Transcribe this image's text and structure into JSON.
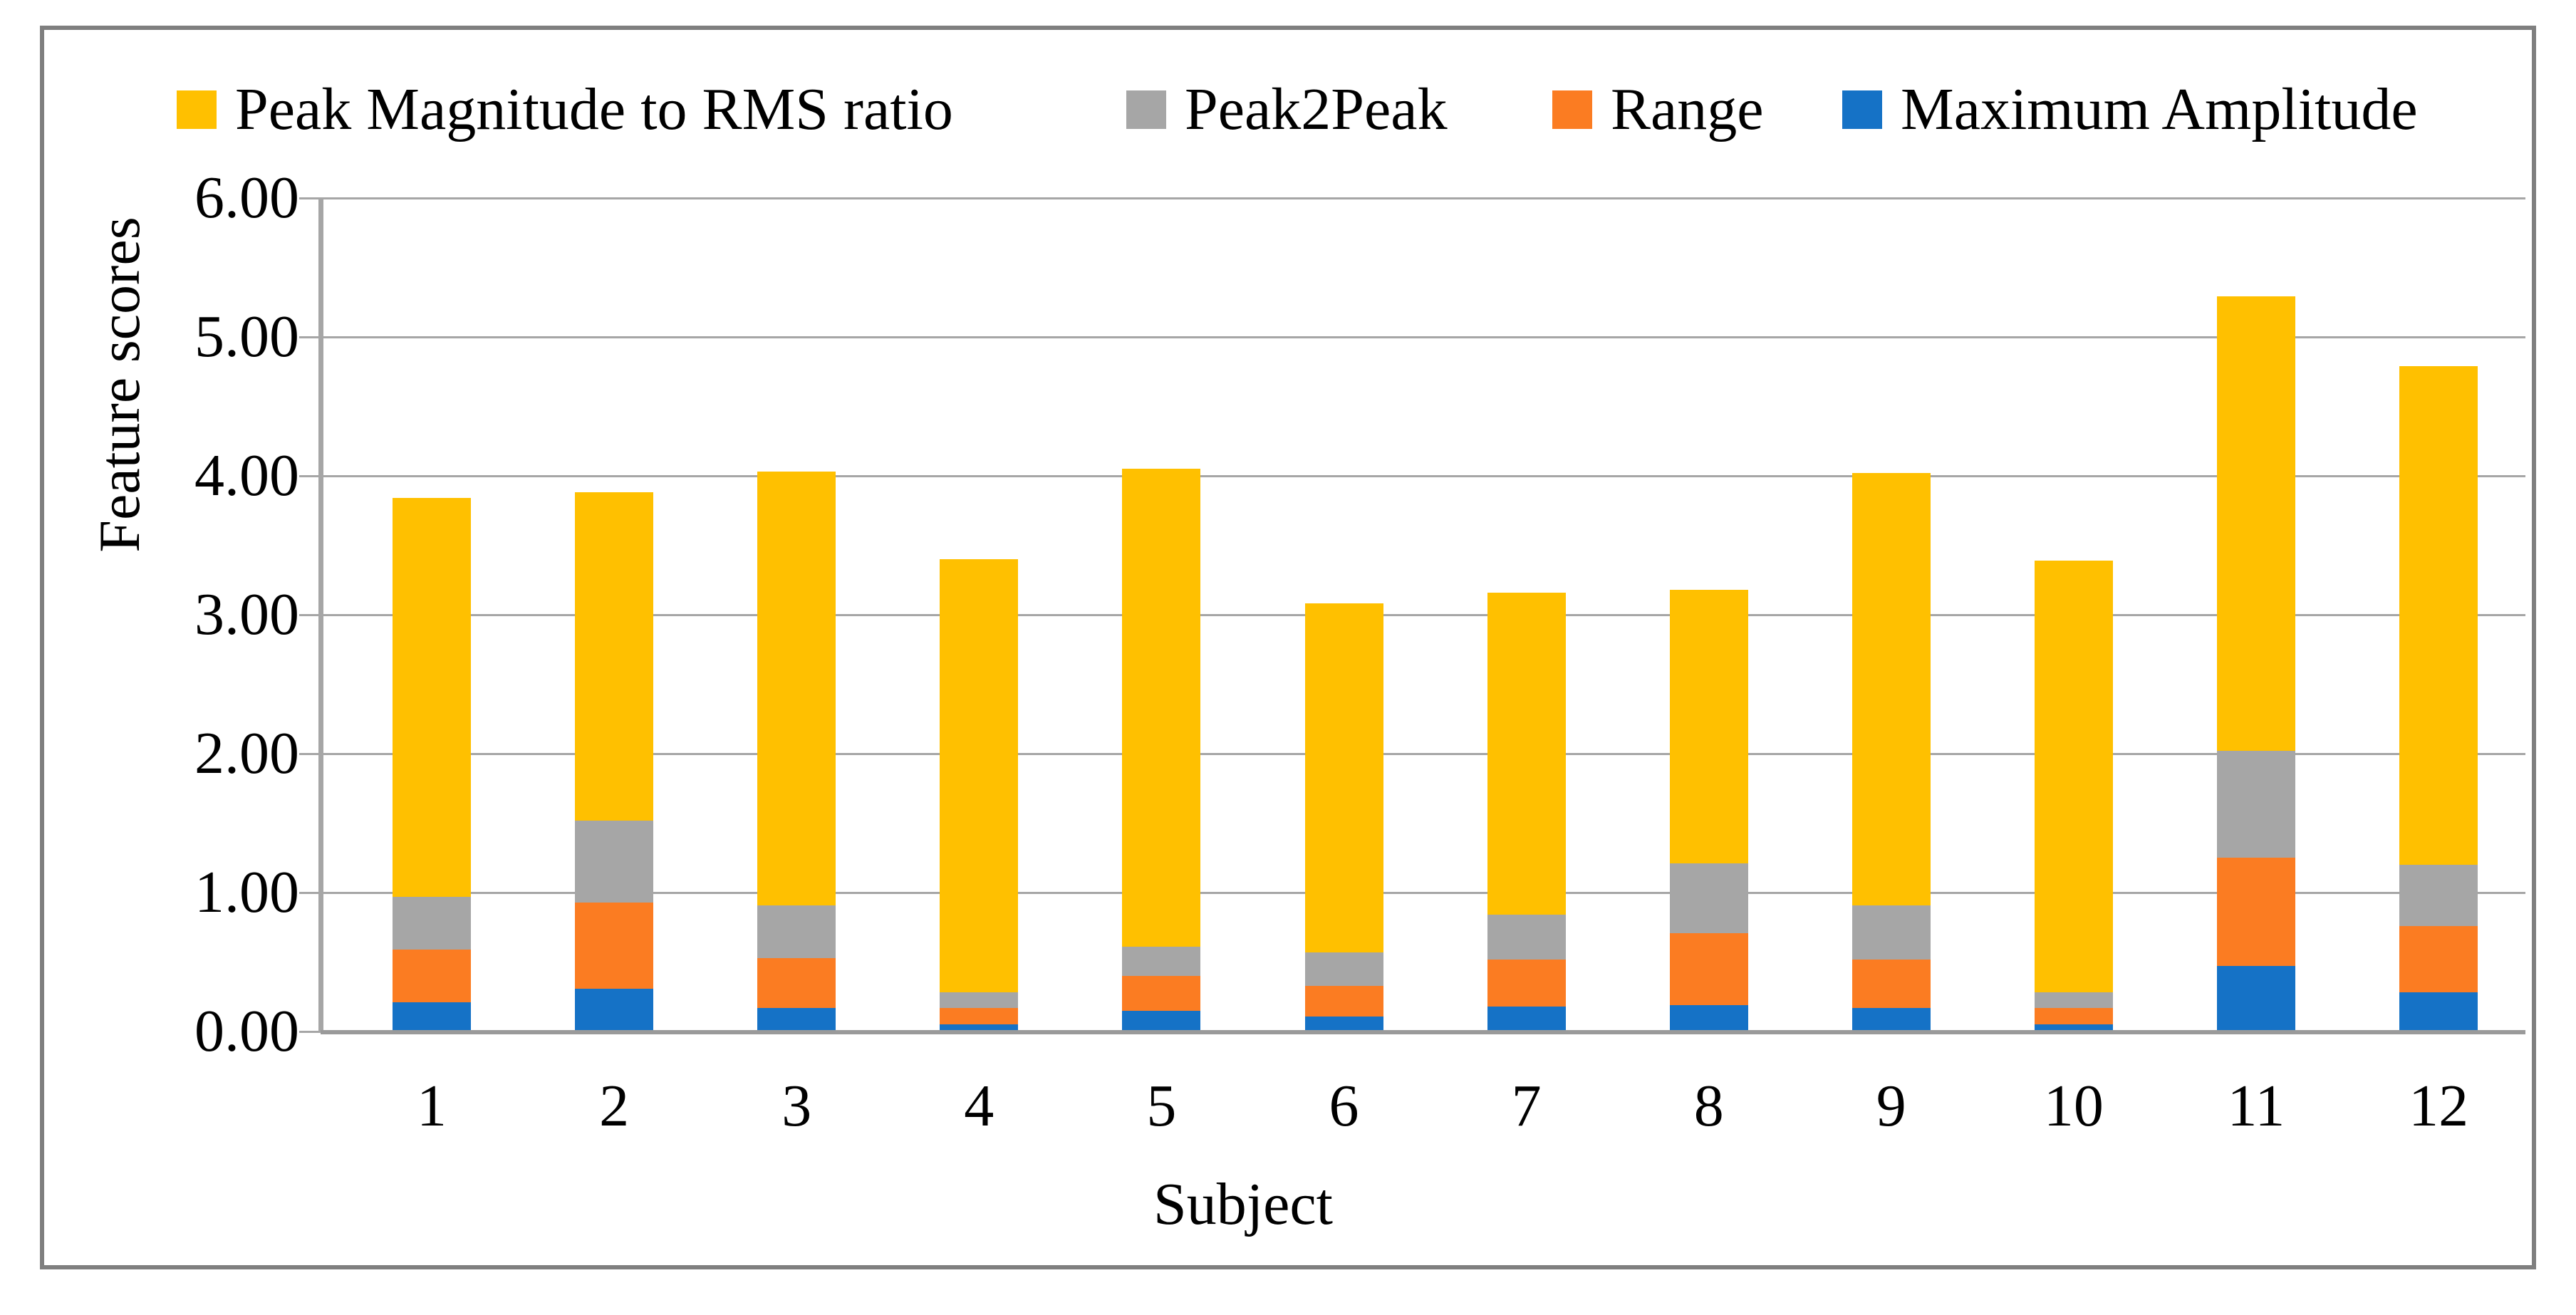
{
  "chart_data": {
    "type": "bar",
    "stacked": true,
    "title": "",
    "xlabel": "Subject",
    "ylabel": "Feature scores",
    "categories": [
      "1",
      "2",
      "3",
      "4",
      "5",
      "6",
      "7",
      "8",
      "9",
      "10",
      "11",
      "12"
    ],
    "series": [
      {
        "name": "Maximum Amplitude",
        "color": "#1572C6",
        "values": [
          0.21,
          0.31,
          0.17,
          0.05,
          0.15,
          0.11,
          0.18,
          0.19,
          0.17,
          0.05,
          0.47,
          0.28
        ]
      },
      {
        "name": "Range",
        "color": "#FB7C22",
        "values": [
          0.38,
          0.62,
          0.36,
          0.12,
          0.25,
          0.22,
          0.34,
          0.52,
          0.35,
          0.12,
          0.78,
          0.48
        ]
      },
      {
        "name": "Peak2Peak",
        "color": "#A6A6A6",
        "values": [
          0.38,
          0.59,
          0.38,
          0.11,
          0.21,
          0.24,
          0.32,
          0.5,
          0.39,
          0.11,
          0.77,
          0.44
        ]
      },
      {
        "name": "Peak Magnitude to RMS ratio",
        "color": "#FFC000",
        "values": [
          2.87,
          2.36,
          3.12,
          3.12,
          3.44,
          2.51,
          2.32,
          1.97,
          3.11,
          3.11,
          3.27,
          3.59
        ]
      }
    ],
    "stack_order_bottom_to_top": [
      "Maximum Amplitude",
      "Range",
      "Peak2Peak",
      "Peak Magnitude to RMS ratio"
    ],
    "legend_order": [
      "Peak Magnitude to RMS ratio",
      "Peak2Peak",
      "Range",
      "Maximum Amplitude"
    ],
    "totals": [
      3.84,
      3.88,
      4.03,
      3.4,
      4.05,
      3.08,
      3.16,
      3.18,
      4.02,
      3.39,
      5.29,
      4.79
    ],
    "ylim": [
      0,
      6
    ],
    "ytick_step": 1.0,
    "ytick_labels": [
      "0.00",
      "1.00",
      "2.00",
      "3.00",
      "4.00",
      "5.00",
      "6.00"
    ],
    "grid": true,
    "legend_position": "top",
    "colors": {
      "peak_magnitude_to_rms_ratio": "#FFC000",
      "peak2peak": "#A6A6A6",
      "range": "#FB7C22",
      "maximum_amplitude": "#1572C6",
      "gridline": "#A6A6A6",
      "figure_border": "#7F7F7F"
    }
  }
}
